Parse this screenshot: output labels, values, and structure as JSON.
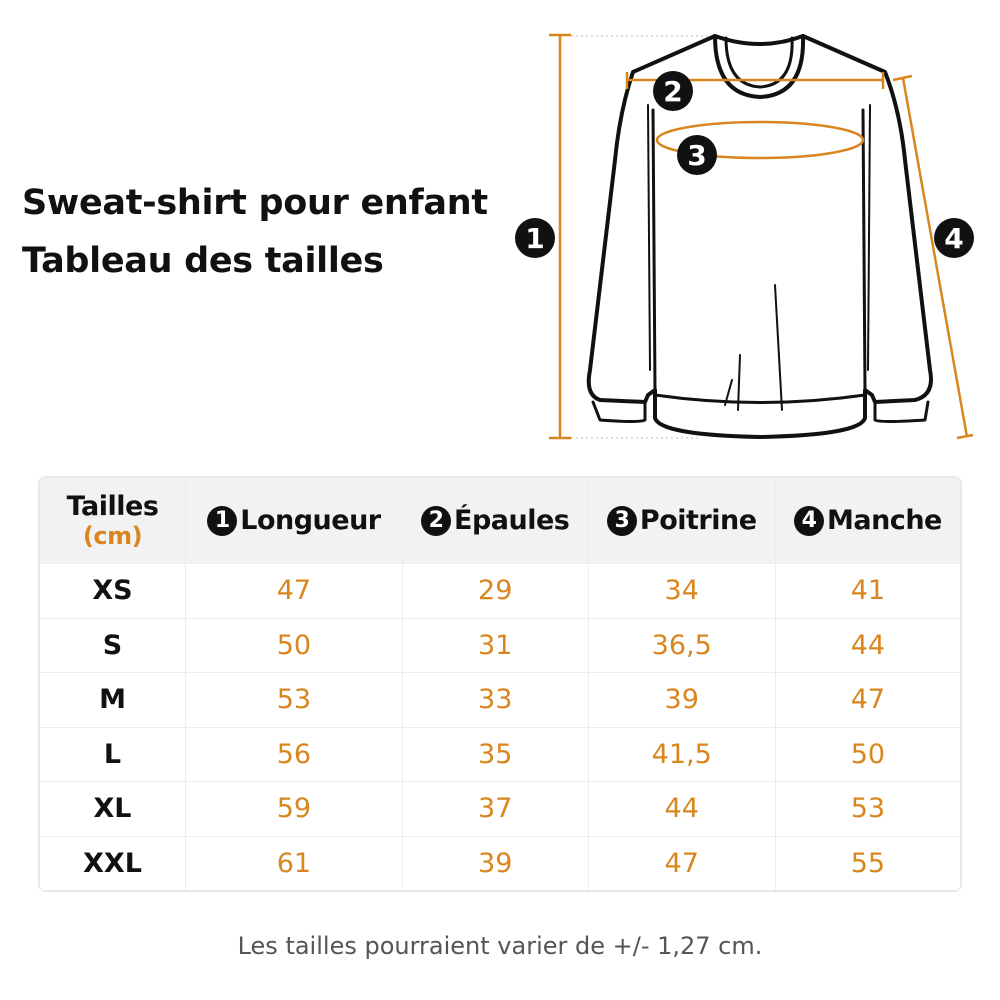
{
  "title": {
    "line1": "Sweat-shirt pour enfant",
    "line2": "Tableau des tailles"
  },
  "diagram": {
    "markers": [
      "1",
      "2",
      "3",
      "4"
    ],
    "accent_color": "#d9861f"
  },
  "table": {
    "header": {
      "size_label": "Tailles",
      "unit": "(cm)",
      "columns": [
        {
          "num": "1",
          "label": "Longueur"
        },
        {
          "num": "2",
          "label": "Épaules"
        },
        {
          "num": "3",
          "label": "Poitrine"
        },
        {
          "num": "4",
          "label": "Manche"
        }
      ]
    },
    "rows": [
      {
        "size": "XS",
        "values": [
          "47",
          "29",
          "34",
          "41"
        ]
      },
      {
        "size": "S",
        "values": [
          "50",
          "31",
          "36,5",
          "44"
        ]
      },
      {
        "size": "M",
        "values": [
          "53",
          "33",
          "39",
          "47"
        ]
      },
      {
        "size": "L",
        "values": [
          "56",
          "35",
          "41,5",
          "50"
        ]
      },
      {
        "size": "XL",
        "values": [
          "59",
          "37",
          "44",
          "53"
        ]
      },
      {
        "size": "XXL",
        "values": [
          "61",
          "39",
          "47",
          "55"
        ]
      }
    ]
  },
  "note": "Les tailles pourraient varier de +/- 1,27 cm."
}
